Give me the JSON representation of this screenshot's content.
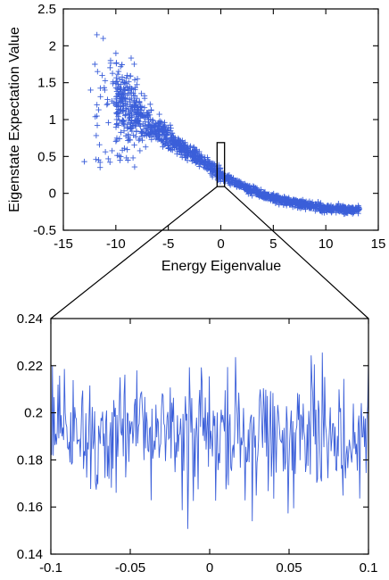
{
  "chart_data": [
    {
      "type": "scatter",
      "marker": "+",
      "xlabel": "Energy Eigenvalue",
      "ylabel": "Eigenstate Expectation Value",
      "xlim": [
        -15,
        15
      ],
      "ylim": [
        -0.5,
        2.5
      ],
      "xticks": [
        "-15",
        "-10",
        "-5",
        "0",
        "5",
        "10",
        "15"
      ],
      "yticks": [
        "-0.5",
        "0",
        "0.5",
        "1",
        "1.5",
        "2",
        "2.5"
      ],
      "series_color": "#3b5fd9",
      "grid": false,
      "trend_approx": {
        "x": [
          -13,
          -11,
          -10,
          -9,
          -8,
          -7,
          -6,
          -5,
          -4,
          -3,
          -2,
          -1,
          0,
          1,
          2,
          3,
          4,
          5,
          6,
          7,
          8,
          9,
          10,
          11,
          12,
          13
        ],
        "y": [
          0.43,
          1.35,
          1.3,
          1.15,
          1.05,
          0.95,
          0.85,
          0.74,
          0.64,
          0.55,
          0.45,
          0.35,
          0.25,
          0.17,
          0.1,
          0.04,
          -0.02,
          -0.06,
          -0.1,
          -0.13,
          -0.15,
          -0.18,
          -0.2,
          -0.21,
          -0.22,
          -0.22
        ]
      },
      "inset_region": {
        "x": [
          -0.1,
          0.1
        ],
        "y": [
          0.14,
          0.24
        ]
      }
    },
    {
      "type": "line",
      "xlim": [
        -0.1,
        0.1
      ],
      "ylim": [
        0.14,
        0.24
      ],
      "xticks": [
        "-0.1",
        "-0.05",
        "0",
        "0.05",
        "0.1"
      ],
      "yticks": [
        "0.14",
        "0.16",
        "0.18",
        "0.2",
        "0.22",
        "0.24"
      ],
      "series_color": "#3b5fd9",
      "grid": false,
      "x_range": [
        -0.1,
        0.1
      ],
      "mean_value": 0.19,
      "spread_range": [
        0.145,
        0.232
      ],
      "num_points_approx": 400
    }
  ]
}
